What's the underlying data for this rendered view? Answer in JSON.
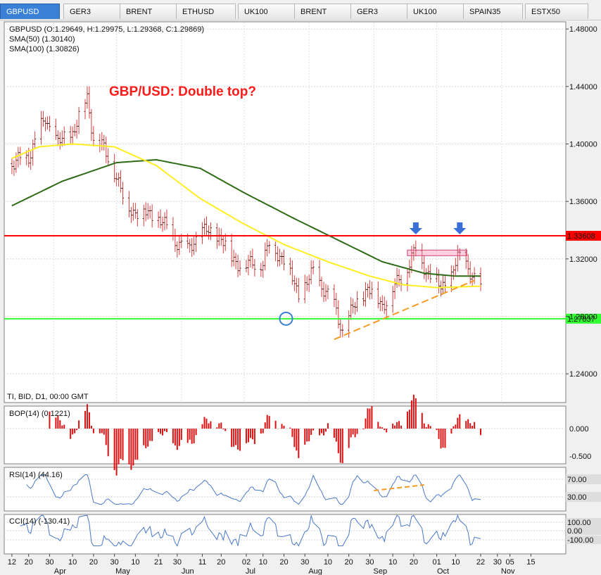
{
  "tabs": [
    {
      "label": "GBPUSD",
      "active": true
    },
    {
      "label": "GER3",
      "active": false
    },
    {
      "label": "BRENT",
      "active": false
    },
    {
      "label": "ETHUSD",
      "active": false
    },
    {
      "label": "UK100",
      "active": false
    },
    {
      "label": "BRENT",
      "active": false
    },
    {
      "label": "GER3",
      "active": false
    },
    {
      "label": "UK100",
      "active": false
    },
    {
      "label": "SPAIN35",
      "active": false
    },
    {
      "label": "ESTX50",
      "active": false
    }
  ],
  "main_panel": {
    "info_lines": [
      "GBPUSD (O:1.29649, H:1.29975, L:1.29368, C:1.29869)",
      "SMA(50) (1.30140)",
      "SMA(100) (1.30826)"
    ],
    "annotation": "GBP/USD: Double top?",
    "footer_text": "TI, BID, D1, 00:00 GMT",
    "y_ticks": [
      "1.48000",
      "1.44000",
      "1.40000",
      "1.36000",
      "1.32000",
      "1.28000",
      "1.24000"
    ],
    "resistance_label": "1.33608",
    "support_label": "1.27837",
    "colors": {
      "resistance": "#ff0000",
      "support": "#33ff33",
      "sma50": "#ffee22",
      "sma100": "#2e6b16",
      "trend": "#f59a23",
      "arrows": "#3a6fd8"
    }
  },
  "bop_panel": {
    "label": "BOP(14) (0.1221)",
    "y_ticks": [
      "0.000",
      "-0.500"
    ]
  },
  "rsi_panel": {
    "label": "RSI(14) (44.16)",
    "levels": [
      "70.00",
      "30.00"
    ]
  },
  "cci_panel": {
    "label": "CCI(14) (-130.41)",
    "levels": [
      "100.00",
      "0.00",
      "-100.00"
    ]
  },
  "x_axis": {
    "day_ticks": [
      "12",
      "20",
      "30",
      "10",
      "20",
      "30",
      "10",
      "21",
      "30",
      "11",
      "20",
      "02",
      "10",
      "20",
      "30",
      "10",
      "20",
      "30",
      "10",
      "20",
      "01",
      "10",
      "22",
      "30",
      "05",
      "15"
    ],
    "months": [
      "Apr",
      "May",
      "Jun",
      "Jul",
      "Aug",
      "Sep",
      "Oct",
      "Nov"
    ]
  },
  "chart_data": {
    "type": "candlestick",
    "instrument": "GBPUSD",
    "timeframe": "D1",
    "ylim": [
      1.22,
      1.485
    ],
    "close_path": [
      {
        "x": "03-12",
        "y": 1.385
      },
      {
        "x": "03-20",
        "y": 1.392
      },
      {
        "x": "03-28",
        "y": 1.418
      },
      {
        "x": "04-03",
        "y": 1.4
      },
      {
        "x": "04-10",
        "y": 1.408
      },
      {
        "x": "04-17",
        "y": 1.432
      },
      {
        "x": "04-20",
        "y": 1.405
      },
      {
        "x": "04-24",
        "y": 1.398
      },
      {
        "x": "04-30",
        "y": 1.382
      },
      {
        "x": "05-05",
        "y": 1.358
      },
      {
        "x": "05-10",
        "y": 1.353
      },
      {
        "x": "05-20",
        "y": 1.35
      },
      {
        "x": "05-28",
        "y": 1.335
      },
      {
        "x": "06-04",
        "y": 1.325
      },
      {
        "x": "06-10",
        "y": 1.34
      },
      {
        "x": "06-20",
        "y": 1.335
      },
      {
        "x": "06-25",
        "y": 1.32
      },
      {
        "x": "07-02",
        "y": 1.315
      },
      {
        "x": "07-10",
        "y": 1.318
      },
      {
        "x": "07-13",
        "y": 1.33
      },
      {
        "x": "07-20",
        "y": 1.32
      },
      {
        "x": "07-27",
        "y": 1.295
      },
      {
        "x": "08-03",
        "y": 1.31
      },
      {
        "x": "08-08",
        "y": 1.3
      },
      {
        "x": "08-13",
        "y": 1.287
      },
      {
        "x": "08-17",
        "y": 1.27
      },
      {
        "x": "08-22",
        "y": 1.285
      },
      {
        "x": "08-29",
        "y": 1.3
      },
      {
        "x": "09-05",
        "y": 1.288
      },
      {
        "x": "09-10",
        "y": 1.298
      },
      {
        "x": "09-16",
        "y": 1.312
      },
      {
        "x": "09-21",
        "y": 1.326
      },
      {
        "x": "09-27",
        "y": 1.31
      },
      {
        "x": "10-03",
        "y": 1.3
      },
      {
        "x": "10-08",
        "y": 1.308
      },
      {
        "x": "10-11",
        "y": 1.32
      },
      {
        "x": "10-15",
        "y": 1.318
      },
      {
        "x": "10-19",
        "y": 1.305
      },
      {
        "x": "10-22",
        "y": 1.299
      }
    ],
    "sma50_path": [
      {
        "x": "03-12",
        "y": 1.39
      },
      {
        "x": "03-25",
        "y": 1.398
      },
      {
        "x": "04-10",
        "y": 1.4
      },
      {
        "x": "04-30",
        "y": 1.398
      },
      {
        "x": "05-20",
        "y": 1.385
      },
      {
        "x": "06-10",
        "y": 1.362
      },
      {
        "x": "06-30",
        "y": 1.345
      },
      {
        "x": "07-20",
        "y": 1.33
      },
      {
        "x": "08-10",
        "y": 1.318
      },
      {
        "x": "08-30",
        "y": 1.308
      },
      {
        "x": "09-15",
        "y": 1.302
      },
      {
        "x": "10-01",
        "y": 1.3
      },
      {
        "x": "10-22",
        "y": 1.301
      }
    ],
    "sma100_path": [
      {
        "x": "03-12",
        "y": 1.357
      },
      {
        "x": "04-05",
        "y": 1.374
      },
      {
        "x": "05-01",
        "y": 1.387
      },
      {
        "x": "05-20",
        "y": 1.389
      },
      {
        "x": "06-10",
        "y": 1.383
      },
      {
        "x": "07-01",
        "y": 1.366
      },
      {
        "x": "07-25",
        "y": 1.348
      },
      {
        "x": "08-15",
        "y": 1.333
      },
      {
        "x": "09-05",
        "y": 1.318
      },
      {
        "x": "09-25",
        "y": 1.31
      },
      {
        "x": "10-10",
        "y": 1.308
      },
      {
        "x": "10-22",
        "y": 1.308
      }
    ],
    "horizontal_levels": [
      {
        "value": 1.33608,
        "color": "#ff0000"
      },
      {
        "value": 1.27837,
        "color": "#33ff33"
      }
    ],
    "trendline": [
      {
        "x": "08-13",
        "y": 1.264
      },
      {
        "x": "10-19",
        "y": 1.305
      }
    ],
    "marked_tops": [
      "09-21",
      "10-12"
    ],
    "grid": true
  }
}
